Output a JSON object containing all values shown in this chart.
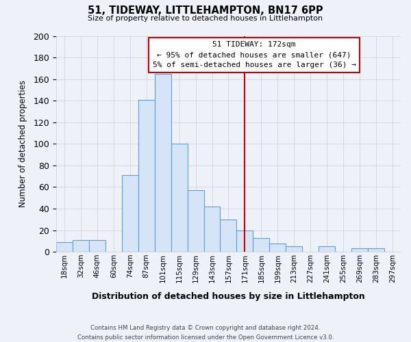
{
  "title": "51, TIDEWAY, LITTLEHAMPTON, BN17 6PP",
  "subtitle": "Size of property relative to detached houses in Littlehampton",
  "xlabel": "Distribution of detached houses by size in Littlehampton",
  "ylabel": "Number of detached properties",
  "footer_line1": "Contains HM Land Registry data © Crown copyright and database right 2024.",
  "footer_line2": "Contains public sector information licensed under the Open Government Licence v3.0.",
  "bin_labels": [
    "18sqm",
    "32sqm",
    "46sqm",
    "60sqm",
    "74sqm",
    "87sqm",
    "101sqm",
    "115sqm",
    "129sqm",
    "143sqm",
    "157sqm",
    "171sqm",
    "185sqm",
    "199sqm",
    "213sqm",
    "227sqm",
    "241sqm",
    "255sqm",
    "269sqm",
    "283sqm",
    "297sqm"
  ],
  "counts": [
    9,
    11,
    11,
    0,
    71,
    141,
    165,
    100,
    57,
    42,
    30,
    20,
    13,
    8,
    5,
    0,
    5,
    0,
    3,
    3,
    0
  ],
  "bar_fill": "#d6e4f7",
  "bar_edge": "#5a9fd4",
  "vline_index": 11,
  "vline_color": "#cc0000",
  "annotation_title": "51 TIDEWAY: 172sqm",
  "annotation_line1": "← 95% of detached houses are smaller (647)",
  "annotation_line2": "5% of semi-detached houses are larger (36) →",
  "annotation_box_edge": "#cc0000",
  "ylim": [
    0,
    200
  ],
  "yticks": [
    0,
    20,
    40,
    60,
    80,
    100,
    120,
    140,
    160,
    180,
    200
  ],
  "background_color": "#eef2f8",
  "grid_color": "#c8cdd8"
}
